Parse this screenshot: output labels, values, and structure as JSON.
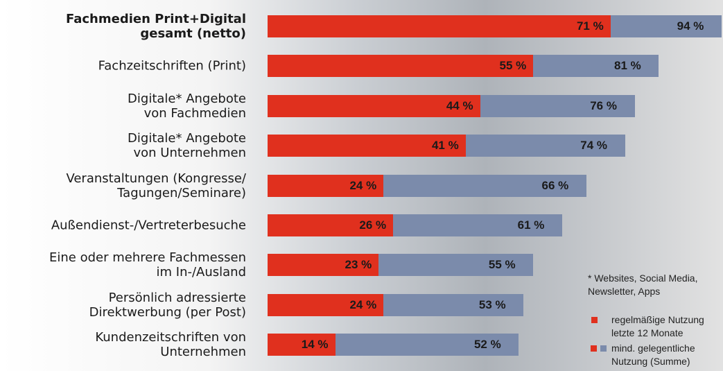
{
  "chart_data": {
    "type": "bar",
    "orientation": "horizontal",
    "categories": [
      "Fachmedien Print+Digital\ngesamt (netto)",
      "Fachzeitschriften (Print)",
      "Digitale* Angebote\nvon Fachmedien",
      "Digitale* Angebote\nvon Unternehmen",
      "Veranstaltungen (Kongresse/\nTagungen/Seminare)",
      "Außendienst-/Vertreterbesuche",
      "Eine oder mehrere Fachmessen\nim In-/Ausland",
      "Persönlich adressierte\nDirektwerbung (per Post)",
      "Kundenzeitschriften von\nUnternehmen"
    ],
    "series": [
      {
        "name": "mind. gelegentliche\nNutzung (Summe)",
        "color": "#7b8bab",
        "values": [
          94,
          81,
          76,
          74,
          66,
          61,
          55,
          53,
          52
        ],
        "value_labels": [
          "94 %",
          "81 %",
          "76 %",
          "74 %",
          "66 %",
          "61 %",
          "55 %",
          "53 %",
          "52 %"
        ]
      },
      {
        "name": "regelmäßige Nutzung\nletzte 12 Monate",
        "color": "#e0301e",
        "values": [
          71,
          55,
          44,
          41,
          24,
          26,
          23,
          24,
          14
        ],
        "value_labels": [
          "71 %",
          "55 %",
          "44 %",
          "41 %",
          "24 %",
          "26 %",
          "23 %",
          "24 %",
          "14 %"
        ]
      }
    ],
    "footnote": "* Websites, Social Media,\nNewsletter, Apps"
  }
}
